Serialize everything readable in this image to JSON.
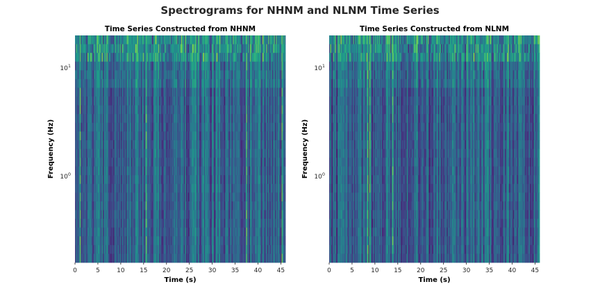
{
  "suptitle": "Spectrograms for NHNM and NLNM Time Series",
  "chart_data": [
    {
      "type": "heatmap",
      "title": "Time Series Constructed from NHNM",
      "xlabel": "Time (s)",
      "ylabel": "Frequency (Hz)",
      "xlim": [
        0,
        46
      ],
      "xticks": [
        0,
        5,
        10,
        15,
        20,
        25,
        30,
        35,
        40,
        45
      ],
      "ylim": [
        0.16,
        20
      ],
      "yscale": "log",
      "yticks": [
        {
          "value": 1,
          "base": "10",
          "exp": "0"
        },
        {
          "value": 10,
          "base": "10",
          "exp": "1"
        }
      ],
      "colormap": "viridis",
      "grid": false,
      "bright_times_s": [
        1.1,
        15.5,
        37.5,
        45.2
      ]
    },
    {
      "type": "heatmap",
      "title": "Time Series Constructed from NLNM",
      "xlabel": "Time (s)",
      "ylabel": "Frequency (Hz)",
      "xlim": [
        0,
        46
      ],
      "xticks": [
        0,
        5,
        10,
        15,
        20,
        25,
        30,
        35,
        40,
        45
      ],
      "ylim": [
        0.16,
        20
      ],
      "yscale": "log",
      "yticks": [
        {
          "value": 1,
          "base": "10",
          "exp": "0"
        },
        {
          "value": 10,
          "base": "10",
          "exp": "1"
        }
      ],
      "colormap": "viridis",
      "grid": false,
      "bright_times_s": [
        8.3,
        8.8,
        13.7
      ]
    }
  ]
}
